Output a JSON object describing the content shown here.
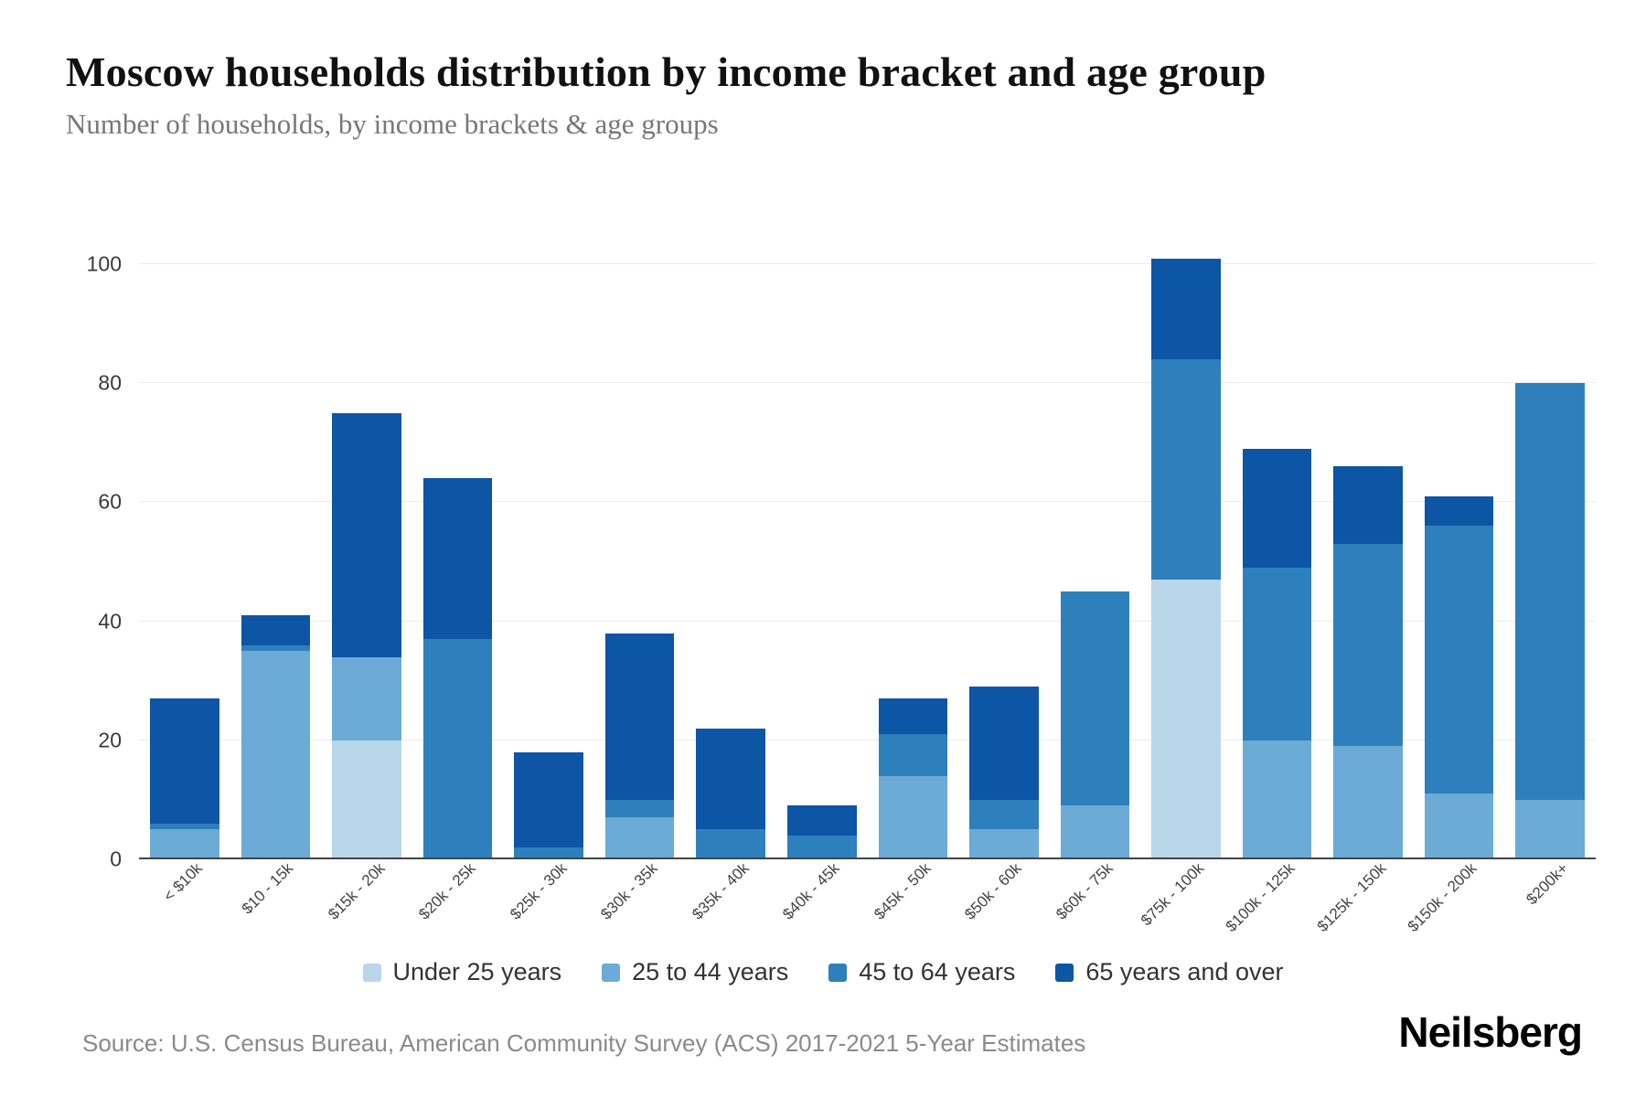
{
  "chart_data": {
    "type": "bar",
    "stacked": true,
    "title": "Moscow households distribution by income bracket and age group",
    "subtitle": "Number of households, by income brackets & age groups",
    "categories": [
      "< $10k",
      "$10 - 15k",
      "$15k - 20k",
      "$20k - 25k",
      "$25k - 30k",
      "$30k - 35k",
      "$35k - 40k",
      "$40k - 45k",
      "$45k - 50k",
      "$50k - 60k",
      "$60k - 75k",
      "$75k - 100k",
      "$100k - 125k",
      "$125k - 150k",
      "$150k - 200k",
      "$200k+"
    ],
    "series": [
      {
        "name": "Under 25 years",
        "color": "#b9d6e9",
        "values": [
          0,
          0,
          20,
          0,
          0,
          0,
          0,
          0,
          0,
          0,
          0,
          47,
          0,
          0,
          0,
          0
        ]
      },
      {
        "name": "25 to 44 years",
        "color": "#6babd6",
        "values": [
          5,
          35,
          14,
          0,
          0,
          7,
          0,
          0,
          14,
          5,
          9,
          0,
          20,
          19,
          11,
          10
        ]
      },
      {
        "name": "45 to 64 years",
        "color": "#2e80bd",
        "values": [
          1,
          1,
          0,
          37,
          2,
          3,
          5,
          4,
          7,
          5,
          36,
          37,
          29,
          34,
          45,
          70
        ]
      },
      {
        "name": "65 years and over",
        "color": "#0d55a5",
        "values": [
          21,
          5,
          41,
          27,
          16,
          28,
          17,
          5,
          6,
          19,
          0,
          17,
          20,
          13,
          5,
          0
        ]
      }
    ],
    "totals": [
      27,
      41,
      75,
      64,
      18,
      38,
      22,
      9,
      27,
      29,
      45,
      101,
      69,
      66,
      61,
      80
    ],
    "yticks": [
      0,
      20,
      40,
      60,
      80,
      100
    ],
    "ylim": [
      0,
      106
    ],
    "grid": "horizontal",
    "legend_position": "bottom"
  },
  "footer": {
    "source": "Source: U.S. Census Bureau, American Community Survey (ACS) 2017-2021 5-Year Estimates",
    "brand": "Neilsberg"
  }
}
